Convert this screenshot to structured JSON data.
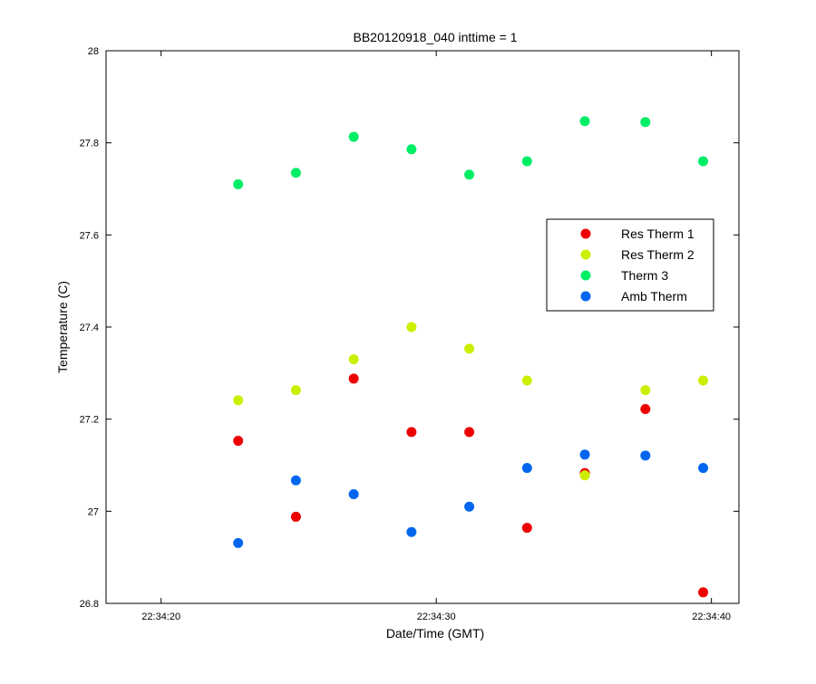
{
  "chart_data": {
    "type": "scatter",
    "title": "BB20120918_040 inttime = 1",
    "xlabel": "Date/Time (GMT)",
    "ylabel": "Temperature (C)",
    "xlim": [
      "22:34:18",
      "22:34:41"
    ],
    "ylim": [
      26.8,
      28
    ],
    "x_ticks": [
      "22:34:20",
      "22:34:30",
      "22:34:40"
    ],
    "y_ticks": [
      26.8,
      27,
      27.2,
      27.4,
      27.6,
      27.8,
      28
    ],
    "y_tick_labels": [
      "26.8",
      "27",
      "27.2",
      "27.4",
      "27.6",
      "27.8",
      "28"
    ],
    "grid": false,
    "legend_position": "right",
    "x": [
      "22:34:22.8",
      "22:34:24.9",
      "22:34:27.0",
      "22:34:29.1",
      "22:34:31.2",
      "22:34:33.3",
      "22:34:35.4",
      "22:34:37.6",
      "22:34:39.7"
    ],
    "series": [
      {
        "name": "Res Therm 1",
        "color": "#ee0000",
        "values": [
          27.153,
          26.988,
          27.288,
          27.172,
          27.172,
          26.964,
          27.083,
          27.222,
          26.824
        ]
      },
      {
        "name": "Res Therm 2",
        "color": "#ccee00",
        "values": [
          27.241,
          27.263,
          27.33,
          27.4,
          27.353,
          27.284,
          27.078,
          27.263,
          27.284
        ]
      },
      {
        "name": "Therm 3",
        "color": "#00ee66",
        "values": [
          27.71,
          27.735,
          27.813,
          27.786,
          27.731,
          27.76,
          27.847,
          27.845,
          27.76
        ]
      },
      {
        "name": "Amb Therm",
        "color": "#0066ee",
        "values": [
          26.931,
          27.067,
          27.037,
          26.955,
          27.01,
          27.094,
          27.123,
          27.121,
          27.094
        ]
      }
    ]
  }
}
